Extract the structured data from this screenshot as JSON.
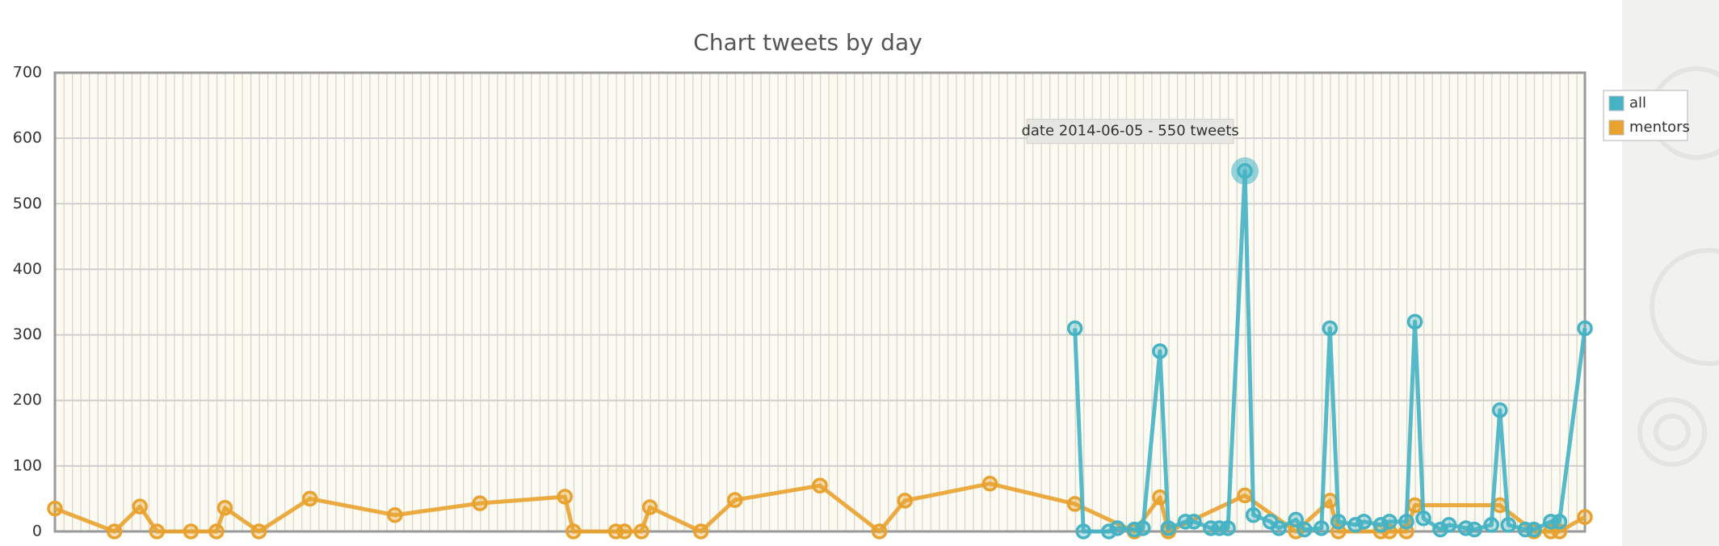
{
  "chart_data": {
    "type": "line",
    "title": "Chart tweets by day",
    "annotation": "date 2014-06-05 - 550 tweets",
    "xlim": [
      0,
      180
    ],
    "ylim": [
      0,
      700
    ],
    "yticks": [
      0,
      100,
      200,
      300,
      400,
      500,
      600,
      700
    ],
    "grid": true,
    "legend": "right",
    "series": [
      {
        "name": "all",
        "color": "#45b3c4",
        "x": [
          120,
          121,
          124,
          125,
          127,
          128,
          130,
          131,
          133,
          134,
          136,
          137,
          138,
          140,
          141,
          143,
          144,
          146,
          147,
          149,
          150,
          151,
          153,
          154,
          156,
          157,
          159,
          160,
          161,
          163,
          164,
          166,
          167,
          169,
          170,
          171,
          173,
          174,
          176,
          177,
          180
        ],
        "values": [
          310,
          0,
          0,
          5,
          3,
          5,
          275,
          5,
          15,
          15,
          5,
          5,
          5,
          550,
          25,
          15,
          5,
          18,
          3,
          5,
          310,
          15,
          10,
          15,
          10,
          15,
          15,
          320,
          20,
          3,
          10,
          5,
          3,
          10,
          185,
          10,
          3,
          3,
          15,
          15,
          310
        ]
      },
      {
        "name": "mentors",
        "color": "#e9a22e",
        "x": [
          0,
          7,
          10,
          12,
          16,
          19,
          20,
          24,
          30,
          40,
          50,
          60,
          61,
          66,
          67,
          69,
          70,
          76,
          80,
          90,
          97,
          100,
          110,
          120,
          127,
          130,
          131,
          140,
          146,
          150,
          151,
          156,
          157,
          159,
          160,
          170,
          174,
          176,
          177,
          180
        ],
        "values": [
          35,
          0,
          38,
          0,
          0,
          0,
          36,
          0,
          50,
          25,
          43,
          53,
          0,
          0,
          0,
          0,
          37,
          0,
          48,
          70,
          0,
          47,
          73,
          42,
          0,
          52,
          0,
          55,
          0,
          47,
          0,
          0,
          0,
          0,
          40,
          40,
          0,
          0,
          0,
          22
        ]
      }
    ],
    "highlight": {
      "series": 0,
      "index": 13
    }
  }
}
